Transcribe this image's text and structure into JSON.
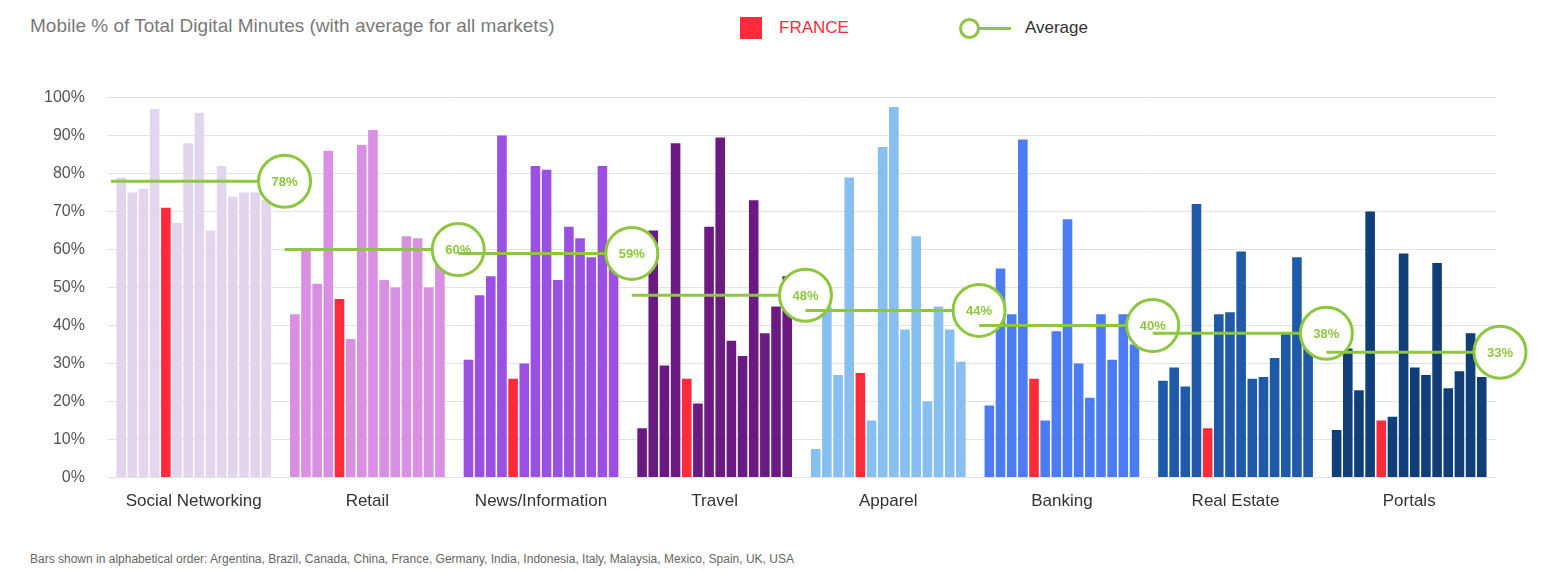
{
  "chart_data": {
    "type": "bar",
    "title": "Mobile % of Total Digital Minutes (with average for all markets)",
    "note": "Bars shown in alphabetical order: Argentina, Brazil, Canada, China, France, Germany, India, Indonesia, Italy, Malaysia, Mexico, Spain, UK, USA",
    "categories": [
      "Social Networking",
      "Retail",
      "News/Information",
      "Travel",
      "Apparel",
      "Banking",
      "Real Estate",
      "Portals"
    ],
    "colors": [
      "#e2d6ef",
      "#d98fe2",
      "#9a50e0",
      "#6b1a82",
      "#86bff0",
      "#4c7cf2",
      "#1f5aa8",
      "#0f3e78"
    ],
    "series": [
      {
        "name": "Argentina",
        "values": [
          79,
          43,
          31,
          13,
          7.5,
          19,
          25.5,
          12.5
        ]
      },
      {
        "name": "Brazil",
        "values": [
          75,
          60,
          48,
          65,
          45,
          55,
          29,
          34
        ]
      },
      {
        "name": "Canada",
        "values": [
          76,
          51,
          53,
          29.5,
          27,
          43,
          24,
          23
        ]
      },
      {
        "name": "China",
        "values": [
          97,
          86,
          90,
          88,
          79,
          89,
          72,
          70
        ]
      },
      {
        "name": "FRANCE",
        "color": "#ff2a3a",
        "values": [
          71,
          47,
          26,
          26,
          27.5,
          26,
          13,
          15
        ]
      },
      {
        "name": "Germany",
        "values": [
          67,
          36.5,
          30,
          19.5,
          15,
          15,
          43,
          16
        ]
      },
      {
        "name": "India",
        "values": [
          88,
          87.5,
          82,
          66,
          87,
          38.5,
          43.5,
          59
        ]
      },
      {
        "name": "Indonesia",
        "values": [
          96,
          91.5,
          81,
          89.5,
          97.5,
          68,
          59.5,
          29
        ]
      },
      {
        "name": "Italy",
        "values": [
          65,
          52,
          52,
          36,
          39,
          30,
          26,
          27
        ]
      },
      {
        "name": "Malaysia",
        "values": [
          82,
          50,
          66,
          32,
          63.5,
          21,
          26.5,
          56.5
        ]
      },
      {
        "name": "Mexico",
        "values": [
          74,
          63.5,
          63,
          73,
          20,
          43,
          31.5,
          23.5
        ]
      },
      {
        "name": "Spain",
        "values": [
          75,
          63,
          58,
          38,
          45,
          31,
          38,
          28
        ]
      },
      {
        "name": "UK",
        "values": [
          75,
          50,
          82,
          45,
          39,
          43,
          58,
          38
        ]
      },
      {
        "name": "USA",
        "values": [
          73,
          57,
          60,
          53,
          30.5,
          35,
          37,
          26.5
        ]
      },
      {
        "name": "Average",
        "type": "line",
        "color": "#8dc63f",
        "marker": "circle",
        "data_labels": true,
        "values": [
          78,
          60,
          59,
          48,
          44,
          40,
          38,
          33
        ],
        "value_labels": [
          "78%",
          "60%",
          "59%",
          "48%",
          "44%",
          "40%",
          "38%",
          "33%"
        ]
      }
    ],
    "ylim": [
      0,
      100
    ],
    "yticks": [
      {
        "value": 0,
        "label": "0%"
      },
      {
        "value": 10,
        "label": "10%"
      },
      {
        "value": 20,
        "label": "20%"
      },
      {
        "value": 30,
        "label": "30%"
      },
      {
        "value": 40,
        "label": "40%"
      },
      {
        "value": 50,
        "label": "50%"
      },
      {
        "value": 60,
        "label": "60%"
      },
      {
        "value": 70,
        "label": "70%"
      },
      {
        "value": 80,
        "label": "80%"
      },
      {
        "value": 90,
        "label": "90%"
      },
      {
        "value": 100,
        "label": "100%"
      }
    ],
    "grid": true
  }
}
